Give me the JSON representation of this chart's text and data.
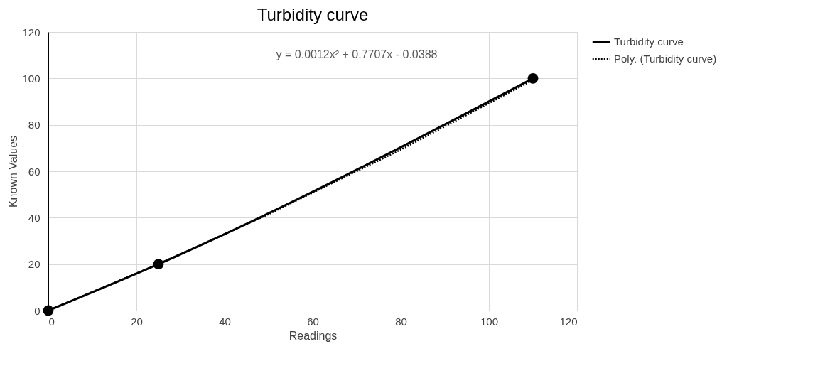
{
  "chart_data": {
    "type": "line",
    "title": "Turbidity curve",
    "xlabel": "Readings",
    "ylabel": "Known Values",
    "annotations": [
      "y = 0.0012x² + 0.7707x - 0.0388"
    ],
    "series": [
      {
        "name": "Turbidity curve",
        "color": "#000000",
        "marker": "circle",
        "line_style": "solid",
        "x": [
          0,
          25,
          110
        ],
        "values": [
          0,
          20,
          100
        ]
      },
      {
        "name": "Poly. (Turbidity curve)",
        "color": "#000000",
        "marker": "none",
        "line_style": "dotted",
        "x": [
          0,
          25,
          50,
          80,
          110
        ],
        "values": [
          0,
          20,
          41.5,
          69.3,
          99.3
        ]
      }
    ],
    "xlim": [
      0,
      120
    ],
    "xticks": [
      0,
      20,
      40,
      60,
      80,
      100,
      120
    ],
    "ylim": [
      0,
      120
    ],
    "yticks": [
      0,
      20,
      40,
      60,
      80,
      100,
      120
    ],
    "grid": true,
    "legend": "right"
  }
}
